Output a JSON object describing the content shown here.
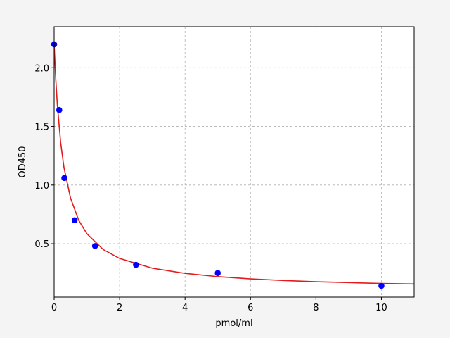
{
  "chart_data": {
    "type": "scatter",
    "xlabel": "pmol/ml",
    "ylabel": "OD450",
    "xlim": [
      0,
      11
    ],
    "ylim": [
      0.044,
      2.35
    ],
    "xticks": [
      0,
      2,
      4,
      6,
      8,
      10
    ],
    "yticks": [
      0.5,
      {
        "value": 1,
        "label": "1.0"
      },
      1.5,
      {
        "value": 2,
        "label": "2.0"
      }
    ],
    "grid": true,
    "series": [
      {
        "type": "line",
        "color": "#e41a1c",
        "x": [
          0,
          0.05,
          0.1,
          0.2,
          0.3,
          0.5,
          0.75,
          1,
          1.5,
          2,
          3,
          4,
          5,
          6,
          7,
          8,
          9,
          10,
          11
        ],
        "values": [
          2.2,
          1.9,
          1.675,
          1.36,
          1.15,
          0.89,
          0.7,
          0.585,
          0.45,
          0.374,
          0.291,
          0.247,
          0.219,
          0.2,
          0.186,
          0.176,
          0.168,
          0.161,
          0.156
        ]
      },
      {
        "type": "scatter",
        "color": "#0000ff",
        "x": [
          0,
          0.156,
          0.3125,
          0.625,
          1.25,
          2.5,
          5,
          10
        ],
        "values": [
          2.2,
          1.64,
          1.06,
          0.7,
          0.48,
          0.32,
          0.25,
          0.14
        ]
      }
    ]
  }
}
